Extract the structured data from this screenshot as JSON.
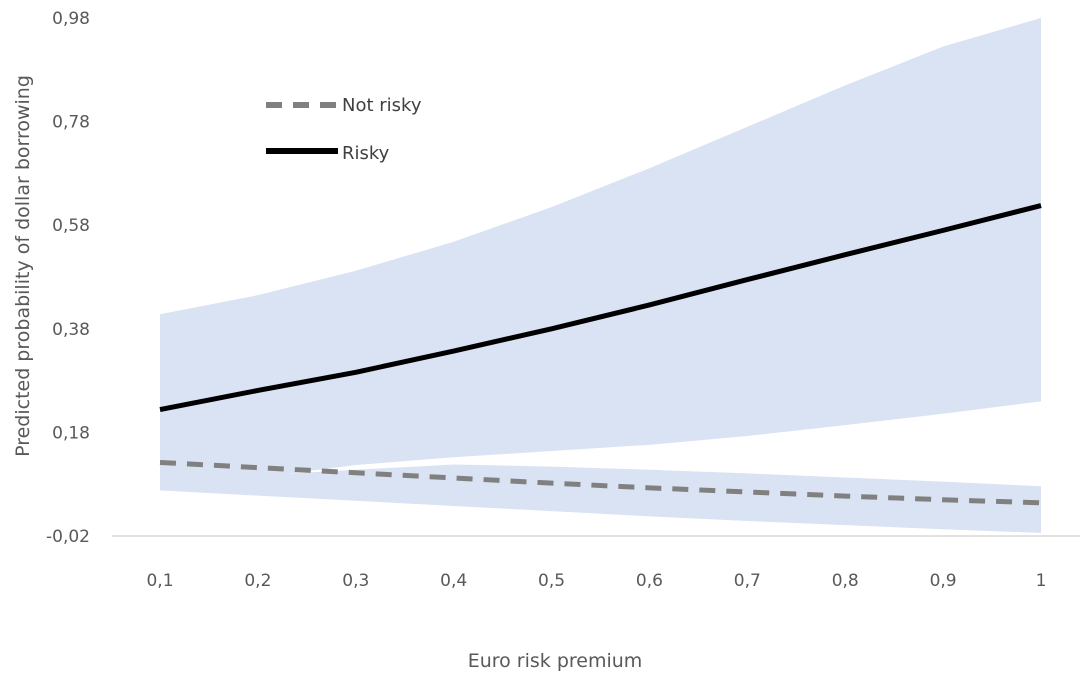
{
  "chart_data": {
    "type": "line",
    "title": "",
    "xlabel": "Euro risk premium",
    "ylabel": "Predicted probability of dollar borrowing",
    "x": [
      0.1,
      0.2,
      0.3,
      0.4,
      0.5,
      0.6,
      0.7,
      0.8,
      0.9,
      1.0
    ],
    "x_tick_labels": [
      "0,1",
      "0,2",
      "0,3",
      "0,4",
      "0,5",
      "0,6",
      "0,7",
      "0,8",
      "0,9",
      "1"
    ],
    "y_tick_labels": [
      "-0,02",
      "0,18",
      "0,38",
      "0,58",
      "0,78",
      "0,98"
    ],
    "y_ticks": [
      -0.02,
      0.18,
      0.38,
      0.58,
      0.78,
      0.98
    ],
    "xlim": [
      0.1,
      1.0
    ],
    "ylim": [
      -0.02,
      0.98
    ],
    "grid": false,
    "legend_position": "top-left",
    "series": [
      {
        "name": "Not risky",
        "style": "dashed",
        "color": "#808080",
        "values": [
          0.122,
          0.112,
          0.102,
          0.092,
          0.082,
          0.073,
          0.065,
          0.057,
          0.05,
          0.044
        ],
        "ci_lower": [
          0.068,
          0.058,
          0.048,
          0.038,
          0.028,
          0.018,
          0.009,
          0.001,
          -0.007,
          -0.014
        ],
        "ci_upper": [
          0.086,
          0.097,
          0.108,
          0.118,
          0.114,
          0.108,
          0.101,
          0.093,
          0.085,
          0.076
        ]
      },
      {
        "name": "Risky",
        "style": "solid",
        "color": "#000000",
        "values": [
          0.224,
          0.261,
          0.296,
          0.337,
          0.38,
          0.426,
          0.475,
          0.523,
          0.57,
          0.618
        ],
        "ci_lower": [
          0.068,
          0.093,
          0.117,
          0.132,
          0.144,
          0.156,
          0.173,
          0.194,
          0.216,
          0.24
        ],
        "ci_upper": [
          0.408,
          0.445,
          0.492,
          0.548,
          0.615,
          0.69,
          0.77,
          0.85,
          0.925,
          0.98
        ]
      }
    ],
    "band_color": "#dae3f3"
  }
}
